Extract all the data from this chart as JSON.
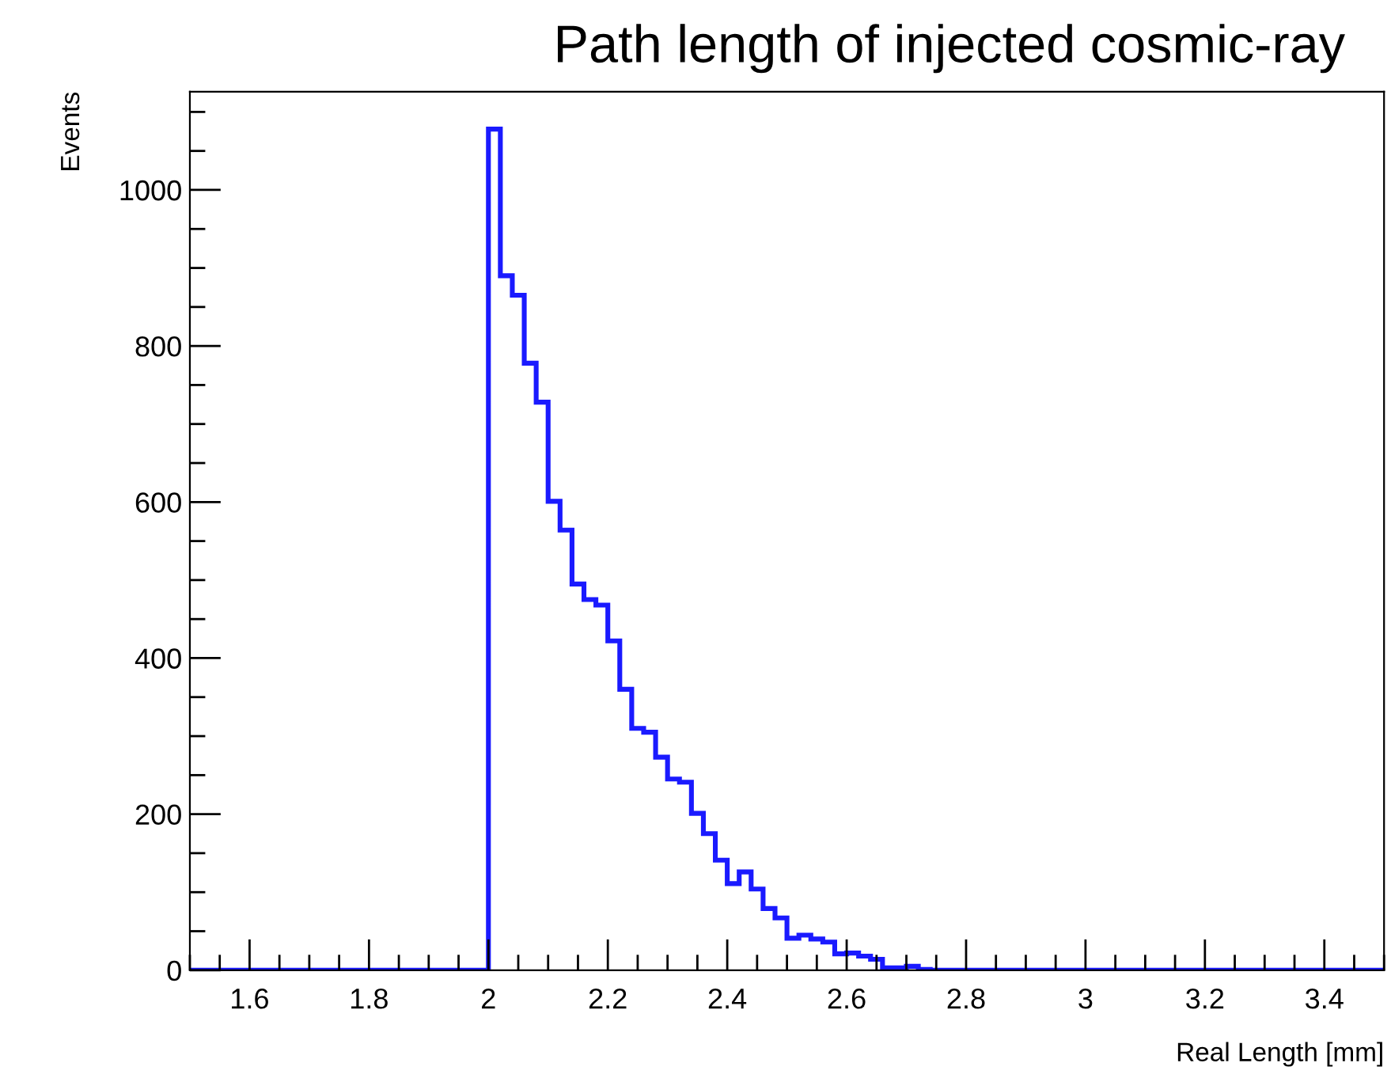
{
  "chart_data": {
    "type": "histogram",
    "title": "Path length of injected cosmic-ray",
    "xlabel": "Real Length [mm]",
    "ylabel": "Events",
    "bins": [
      1.5,
      1.52,
      1.54,
      1.56,
      1.58,
      1.6,
      1.62,
      1.64,
      1.66,
      1.68,
      1.7,
      1.72,
      1.74,
      1.76,
      1.78,
      1.8,
      1.82,
      1.84,
      1.86,
      1.88,
      1.9,
      1.92,
      1.94,
      1.96,
      1.98,
      2.0,
      2.02,
      2.04,
      2.06,
      2.08,
      2.1,
      2.12,
      2.14,
      2.16,
      2.18,
      2.2,
      2.22,
      2.24,
      2.26,
      2.28,
      2.3,
      2.32,
      2.34,
      2.36,
      2.38,
      2.4,
      2.42,
      2.44,
      2.46,
      2.48,
      2.5,
      2.52,
      2.54,
      2.56,
      2.58,
      2.6,
      2.62,
      2.64,
      2.66,
      2.68,
      2.7,
      2.72,
      2.74,
      2.76,
      2.78,
      2.8,
      2.82,
      2.84,
      2.86,
      2.88,
      2.9,
      2.92,
      2.94,
      2.96,
      2.98,
      3.0,
      3.02,
      3.04,
      3.06,
      3.08,
      3.1,
      3.12,
      3.14,
      3.16,
      3.18,
      3.2,
      3.22,
      3.24,
      3.26,
      3.28,
      3.3,
      3.32,
      3.34,
      3.36,
      3.38,
      3.4,
      3.42,
      3.44,
      3.46,
      3.48,
      3.5
    ],
    "values": [
      0,
      0,
      0,
      0,
      0,
      0,
      0,
      0,
      0,
      0,
      0,
      0,
      0,
      0,
      0,
      0,
      0,
      0,
      0,
      0,
      0,
      0,
      0,
      0,
      0,
      1078,
      890,
      865,
      778,
      728,
      601,
      564,
      495,
      475,
      468,
      422,
      360,
      310,
      305,
      273,
      245,
      241,
      201,
      175,
      141,
      111,
      126,
      104,
      79,
      67,
      41,
      45,
      40,
      36,
      21,
      22,
      18,
      14,
      3,
      3,
      5,
      1,
      0,
      0,
      0,
      0,
      0,
      0,
      0,
      0,
      0,
      0,
      0,
      0,
      0,
      0,
      0,
      0,
      0,
      0,
      0,
      0,
      0,
      0,
      0,
      0,
      0,
      0,
      0,
      0,
      0,
      0,
      0,
      0,
      0,
      0,
      0,
      0,
      0,
      0
    ],
    "color": "#1a1aff",
    "xlim": [
      1.5,
      3.5
    ],
    "xticks": [
      1.6,
      1.8,
      2,
      2.2,
      2.4,
      2.6,
      2.8,
      3,
      3.2,
      3.4
    ],
    "ylim": [
      0,
      1126
    ],
    "yticks": [
      0,
      200,
      400,
      600,
      800,
      1000
    ],
    "grid": false
  }
}
